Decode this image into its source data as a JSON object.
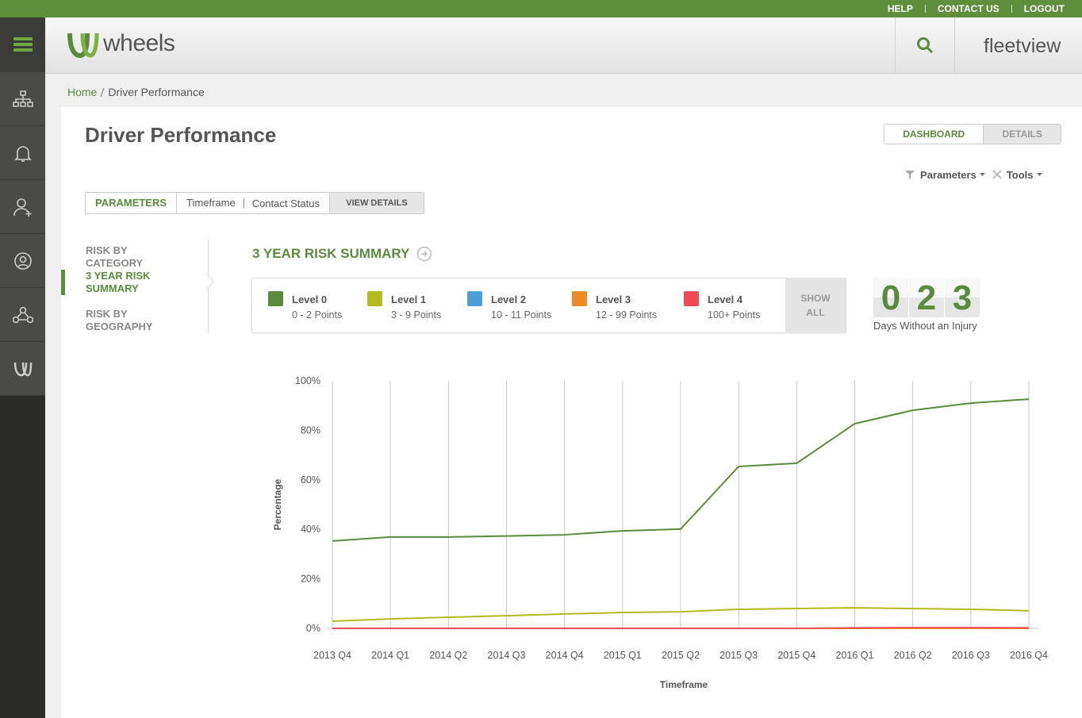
{
  "top_links": [
    "HELP",
    "CONTACT US",
    "LOGOUT"
  ],
  "header": {
    "logo": "wheels",
    "brand": "fleetview"
  },
  "breadcrumb": {
    "home": "Home",
    "current": "Driver Performance"
  },
  "page_title": "Driver Performance",
  "view_tabs": [
    "DASHBOARD",
    "DETAILS"
  ],
  "menus": [
    "Parameters",
    "Tools"
  ],
  "parameters_bar": {
    "label": "PARAMETERS",
    "items": [
      "Timeframe",
      "Contact Status"
    ],
    "button": "VIEW DETAILS"
  },
  "side_nav": [
    "RISK BY CATEGORY",
    "3 YEAR RISK SUMMARY",
    "RISK BY GEOGRAPHY"
  ],
  "section_title": "3 YEAR RISK SUMMARY",
  "show_all": "SHOW ALL",
  "counter": {
    "digits": [
      "0",
      "2",
      "3"
    ],
    "label": "Days Without an Injury"
  },
  "chart_data": {
    "type": "line",
    "x_label": "Timeframe",
    "y_label": "Percentage",
    "categories": [
      "2013 Q4",
      "2014 Q1",
      "2014 Q2",
      "2014 Q3",
      "2014 Q4",
      "2015 Q1",
      "2015 Q2",
      "2015 Q3",
      "2015 Q4",
      "2016 Q1",
      "2016 Q2",
      "2016 Q3",
      "2016 Q4"
    ],
    "ylim": [
      0,
      100
    ],
    "yticks": [
      {
        "value": 0,
        "label": "0%"
      },
      {
        "value": 20,
        "label": "20%"
      },
      {
        "value": 40,
        "label": "40%"
      },
      {
        "value": 60,
        "label": "60%"
      },
      {
        "value": 80,
        "label": "80%"
      },
      {
        "value": 100,
        "label": "100%"
      }
    ],
    "grid": true,
    "series": [
      {
        "name": "Level 0",
        "points": "0 - 2 Points",
        "color": "#5b8a3e",
        "values": [
          35.3,
          36.9,
          36.9,
          37.3,
          37.8,
          39.4,
          40.1,
          65.4,
          66.7,
          82.7,
          88.1,
          91,
          92.6
        ]
      },
      {
        "name": "Level 1",
        "points": "3 - 9 Points",
        "color": "#b3ba1f",
        "values": [
          2.9,
          3.8,
          4.5,
          5.1,
          5.8,
          6.4,
          6.7,
          7.7,
          8,
          8.3,
          8,
          7.7,
          7.1
        ]
      },
      {
        "name": "Level 2",
        "points": "10 - 11 Points",
        "color": "#4e9fd9",
        "values": [
          0,
          0,
          0,
          0,
          0,
          0,
          0,
          0,
          0,
          0,
          0,
          0,
          0
        ]
      },
      {
        "name": "Level 3",
        "points": "12 - 99 Points",
        "color": "#ee8a25",
        "values": [
          0,
          0,
          0,
          0,
          0,
          0,
          0,
          0,
          0,
          0,
          0,
          0,
          0
        ]
      },
      {
        "name": "Level 4",
        "points": "100+ Points",
        "color": "#ec4c52",
        "values": [
          0,
          0,
          0,
          0,
          0,
          0,
          0,
          0,
          0,
          0.2,
          0.3,
          0.3,
          0.2
        ]
      }
    ]
  }
}
